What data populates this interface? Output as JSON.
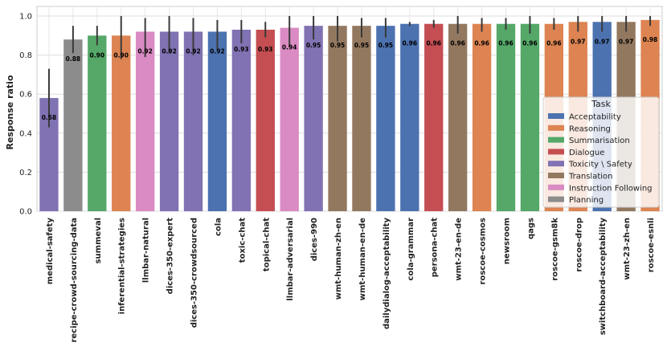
{
  "chart_data": {
    "type": "bar",
    "title": "",
    "xlabel": "",
    "ylabel": "Response ratio",
    "ylim": [
      0,
      1.0
    ],
    "yticks": [
      "0.0",
      "0.2",
      "0.4",
      "0.6",
      "0.8",
      "1.0"
    ],
    "grid": true,
    "legend_position": "right",
    "legend_title": "Task",
    "legend": [
      {
        "name": "Acceptability",
        "color": "#4c72b0"
      },
      {
        "name": "Reasoning",
        "color": "#dd8452"
      },
      {
        "name": "Summarisation",
        "color": "#55a868"
      },
      {
        "name": "Dialogue",
        "color": "#c44e52"
      },
      {
        "name": "Toxicity \\ Safety",
        "color": "#8172b3"
      },
      {
        "name": "Translation",
        "color": "#937860"
      },
      {
        "name": "Instruction Following",
        "color": "#da8bc3"
      },
      {
        "name": "Planning",
        "color": "#8c8c8c"
      }
    ],
    "bars": [
      {
        "category": "medical-safety",
        "value": 0.58,
        "label": "0.58",
        "task": "Toxicity \\ Safety",
        "err_low": 0.43,
        "err_high": 0.73
      },
      {
        "category": "recipe-crowd-sourcing-data",
        "value": 0.88,
        "label": "0.88",
        "task": "Planning",
        "err_low": 0.81,
        "err_high": 0.95
      },
      {
        "category": "summeval",
        "value": 0.9,
        "label": "0.90",
        "task": "Summarisation",
        "err_low": 0.85,
        "err_high": 0.95
      },
      {
        "category": "inferential-strategies",
        "value": 0.9,
        "label": "0.90",
        "task": "Reasoning",
        "err_low": 0.78,
        "err_high": 1.0
      },
      {
        "category": "llmbar-natural",
        "value": 0.92,
        "label": "0.92",
        "task": "Instruction Following",
        "err_low": 0.79,
        "err_high": 0.99
      },
      {
        "category": "dices-350-expert",
        "value": 0.92,
        "label": "0.92",
        "task": "Toxicity \\ Safety",
        "err_low": 0.81,
        "err_high": 1.0
      },
      {
        "category": "dices-350-crowdsourced",
        "value": 0.92,
        "label": "0.92",
        "task": "Toxicity \\ Safety",
        "err_low": 0.8,
        "err_high": 0.99
      },
      {
        "category": "cola",
        "value": 0.92,
        "label": "0.92",
        "task": "Acceptability",
        "err_low": 0.83,
        "err_high": 0.98
      },
      {
        "category": "toxic-chat",
        "value": 0.93,
        "label": "0.93",
        "task": "Toxicity \\ Safety",
        "err_low": 0.86,
        "err_high": 0.98
      },
      {
        "category": "topical-chat",
        "value": 0.93,
        "label": "0.93",
        "task": "Dialogue",
        "err_low": 0.89,
        "err_high": 0.97
      },
      {
        "category": "llmbar-adversarial",
        "value": 0.94,
        "label": "0.94",
        "task": "Instruction Following",
        "err_low": 0.84,
        "err_high": 1.0
      },
      {
        "category": "dices-990",
        "value": 0.95,
        "label": "0.95",
        "task": "Toxicity \\ Safety",
        "err_low": 0.88,
        "err_high": 1.0
      },
      {
        "category": "wmt-human-zh-en",
        "value": 0.95,
        "label": "0.95",
        "task": "Translation",
        "err_low": 0.87,
        "err_high": 1.0
      },
      {
        "category": "wmt-human-en-de",
        "value": 0.95,
        "label": "0.95",
        "task": "Translation",
        "err_low": 0.89,
        "err_high": 0.99
      },
      {
        "category": "dailydialog-acceptability",
        "value": 0.95,
        "label": "0.95",
        "task": "Acceptability",
        "err_low": 0.89,
        "err_high": 0.99
      },
      {
        "category": "cola-grammar",
        "value": 0.96,
        "label": "0.96",
        "task": "Acceptability",
        "err_low": 0.95,
        "err_high": 0.97
      },
      {
        "category": "persona-chat",
        "value": 0.96,
        "label": "0.96",
        "task": "Dialogue",
        "err_low": 0.94,
        "err_high": 0.98
      },
      {
        "category": "wmt-23-en-de",
        "value": 0.96,
        "label": "0.96",
        "task": "Translation",
        "err_low": 0.91,
        "err_high": 1.0
      },
      {
        "category": "roscoe-cosmos",
        "value": 0.96,
        "label": "0.96",
        "task": "Reasoning",
        "err_low": 0.92,
        "err_high": 0.99
      },
      {
        "category": "newsroom",
        "value": 0.96,
        "label": "0.96",
        "task": "Summarisation",
        "err_low": 0.93,
        "err_high": 0.99
      },
      {
        "category": "qags",
        "value": 0.96,
        "label": "0.96",
        "task": "Summarisation",
        "err_low": 0.91,
        "err_high": 1.0
      },
      {
        "category": "roscoe-gsm8k",
        "value": 0.96,
        "label": "0.96",
        "task": "Reasoning",
        "err_low": 0.93,
        "err_high": 0.99
      },
      {
        "category": "roscoe-drop",
        "value": 0.97,
        "label": "0.97",
        "task": "Reasoning",
        "err_low": 0.92,
        "err_high": 1.0
      },
      {
        "category": "switchboard-acceptability",
        "value": 0.97,
        "label": "0.97",
        "task": "Acceptability",
        "err_low": 0.92,
        "err_high": 1.0
      },
      {
        "category": "wmt-23-zh-en",
        "value": 0.97,
        "label": "0.97",
        "task": "Translation",
        "err_low": 0.92,
        "err_high": 1.0
      },
      {
        "category": "roscoe-esnli",
        "value": 0.98,
        "label": "0.98",
        "task": "Reasoning",
        "err_low": 0.95,
        "err_high": 1.0
      }
    ]
  }
}
